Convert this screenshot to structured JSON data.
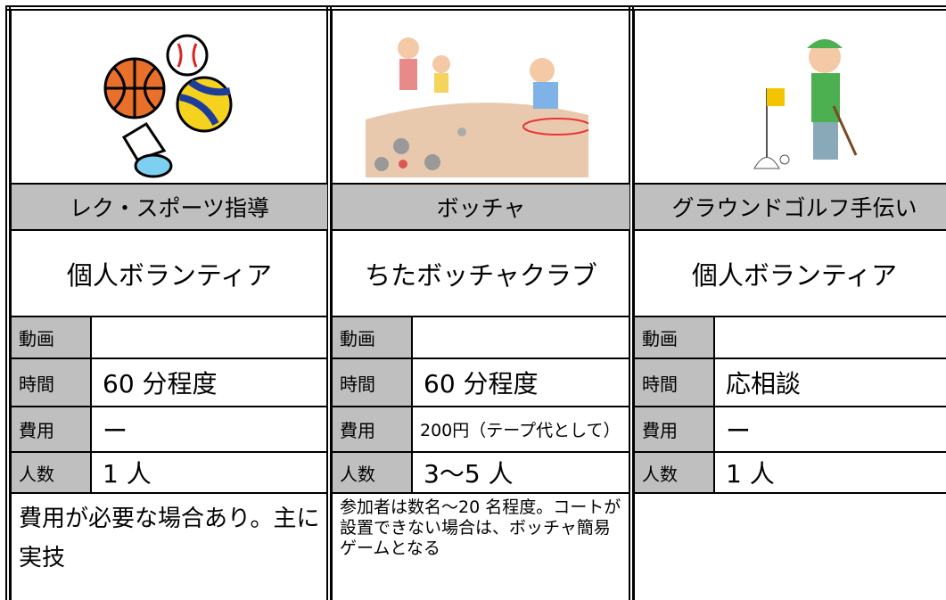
{
  "cards": [
    {
      "title": "レク・スポーツ指導",
      "organization": "個人ボランティア",
      "rows": [
        {
          "label": "動画"
        },
        {
          "label": "時間",
          "value": "60 分程度"
        },
        {
          "label": "費用",
          "value": "ー"
        },
        {
          "label": "人数",
          "value": "1 人"
        }
      ],
      "note": "費用が必要な場合あり。主に実技"
    },
    {
      "title": "ボッチャ",
      "organization": "ちたボッチャクラブ",
      "rows": [
        {
          "label": "動画"
        },
        {
          "label": "時間",
          "value": "60 分程度"
        },
        {
          "label": "費用",
          "value": "200円（テープ代として）"
        },
        {
          "label": "人数",
          "value": "3～5 人"
        }
      ],
      "note": "参加者は数名～20 名程度。コートが設置できない場合は、ボッチャ簡易ゲームとなる"
    },
    {
      "title": "グラウンドゴルフ手伝い",
      "organization": "個人ボランティア",
      "rows": [
        {
          "label": "動画"
        },
        {
          "label": "時間",
          "value": "応相談"
        },
        {
          "label": "費用",
          "value": "ー"
        },
        {
          "label": "人数",
          "value": "1 人"
        }
      ]
    }
  ]
}
